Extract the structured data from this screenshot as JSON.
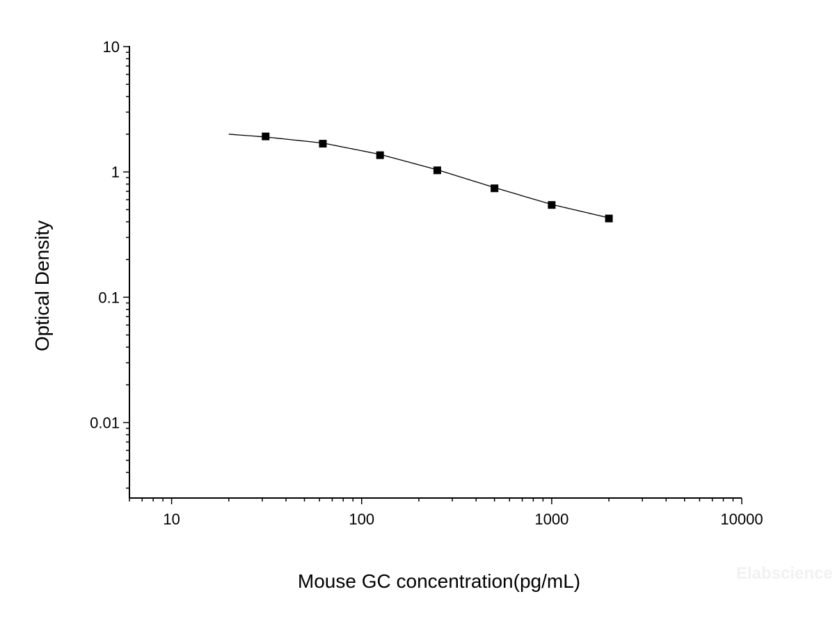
{
  "chart_data": {
    "type": "scatter",
    "title": "",
    "xlabel": "Mouse GC concentration(pg/mL)",
    "ylabel": "Optical Density",
    "x_scale": "log",
    "y_scale": "log",
    "xlim": [
      6,
      10000
    ],
    "ylim": [
      0.0025,
      10
    ],
    "x_ticks": [
      {
        "value": 10,
        "label": "10"
      },
      {
        "value": 100,
        "label": "100"
      },
      {
        "value": 1000,
        "label": "1000"
      },
      {
        "value": 10000,
        "label": "10000"
      }
    ],
    "y_ticks": [
      {
        "value": 10,
        "label": "10"
      },
      {
        "value": 1,
        "label": "1"
      },
      {
        "value": 0.1,
        "label": "0.1"
      },
      {
        "value": 0.01,
        "label": "0.01"
      }
    ],
    "grid": false,
    "legend": "none",
    "series": [
      {
        "marker": "square",
        "color": "#000000",
        "x": [
          31.25,
          62.5,
          125,
          250,
          500,
          1000,
          2000
        ],
        "y": [
          1.92,
          1.68,
          1.36,
          1.03,
          0.74,
          0.545,
          0.425
        ]
      }
    ],
    "fit_curve": {
      "color": "#000000",
      "x": [
        20,
        31.25,
        62.5,
        125,
        250,
        500,
        1000,
        2000
      ],
      "y": [
        2.0,
        1.9,
        1.7,
        1.38,
        1.04,
        0.75,
        0.55,
        0.43
      ]
    }
  },
  "watermark": "Elabscience"
}
